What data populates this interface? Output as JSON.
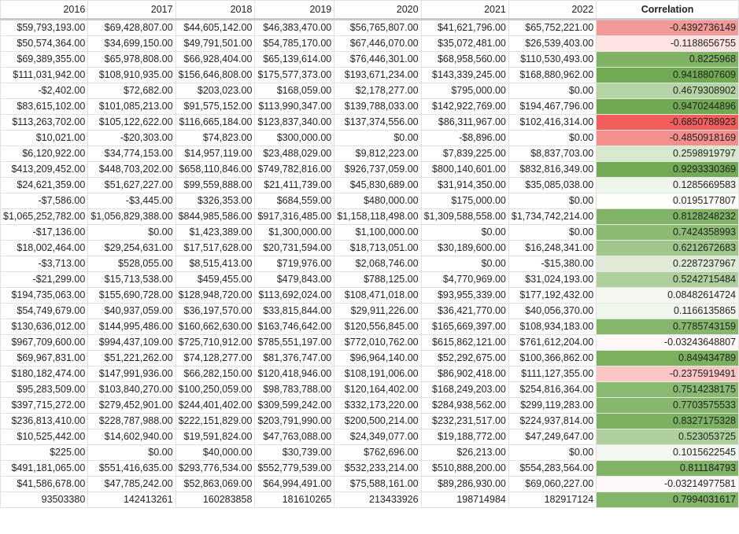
{
  "header": {
    "years": [
      "2016",
      "2017",
      "2018",
      "2019",
      "2020",
      "2021",
      "2022"
    ],
    "corr_label": "Correlation"
  },
  "rows": [
    {
      "vals": [
        "$59,793,193.00",
        "$69,428,807.00",
        "$44,605,142.00",
        "$46,383,470.00",
        "$56,765,807.00",
        "$41,621,796.00",
        "$65,752,221.00"
      ],
      "corr": "-0.4392736149",
      "bg": "#f39a98"
    },
    {
      "vals": [
        "$50,574,364.00",
        "$34,699,150.00",
        "$49,791,501.00",
        "$54,785,170.00",
        "$67,446,070.00",
        "$35,072,481.00",
        "$26,539,403.00"
      ],
      "corr": "-0.1188656755",
      "bg": "#fde3e2"
    },
    {
      "vals": [
        "$69,389,355.00",
        "$65,978,808.00",
        "$66,928,404.00",
        "$65,139,614.00",
        "$76,446,301.00",
        "$68,958,560.00",
        "$110,530,493.00"
      ],
      "corr": "0.8225968",
      "bg": "#7fb263"
    },
    {
      "vals": [
        "$111,031,942.00",
        "$108,910,935.00",
        "$156,646,808.00",
        "$175,577,373.00",
        "$193,671,234.00",
        "$143,339,245.00",
        "$168,880,962.00"
      ],
      "corr": "0.9418807609",
      "bg": "#71aa53"
    },
    {
      "vals": [
        "-$2,402.00",
        "$72,682.00",
        "$203,023.00",
        "$168,059.00",
        "$2,178,277.00",
        "$795,000.00",
        "$0.00"
      ],
      "corr": "0.4679308902",
      "bg": "#b6d4a5"
    },
    {
      "vals": [
        "$83,615,102.00",
        "$101,085,213.00",
        "$91,575,152.00",
        "$113,990,347.00",
        "$139,788,033.00",
        "$142,922,769.00",
        "$194,467,796.00"
      ],
      "corr": "0.9470244896",
      "bg": "#70a952"
    },
    {
      "vals": [
        "$113,263,702.00",
        "$105,122,622.00",
        "$116,665,184.00",
        "$123,837,340.00",
        "$137,374,556.00",
        "$86,311,967.00",
        "$102,416,314.00"
      ],
      "corr": "-0.6850788923",
      "bg": "#f25e5c"
    },
    {
      "vals": [
        "$10,021.00",
        "-$20,303.00",
        "$74,823.00",
        "$300,000.00",
        "$0.00",
        "-$8,896.00",
        "$0.00"
      ],
      "corr": "-0.4850918169",
      "bg": "#f3908d"
    },
    {
      "vals": [
        "$6,120,922.00",
        "$34,774,153.00",
        "$14,957,119.00",
        "$23,488,029.00",
        "$9,812,223.00",
        "$7,839,225.00",
        "$8,837,703.00"
      ],
      "corr": "0.2598919797",
      "bg": "#d9e9d0"
    },
    {
      "vals": [
        "$413,209,452.00",
        "$448,703,202.00",
        "$658,110,846.00",
        "$749,782,816.00",
        "$926,737,059.00",
        "$800,140,601.00",
        "$832,816,349.00"
      ],
      "corr": "0.9293330369",
      "bg": "#72ab55"
    },
    {
      "vals": [
        "$24,621,359.00",
        "$51,627,227.00",
        "$99,559,888.00",
        "$21,411,739.00",
        "$45,830,689.00",
        "$31,914,350.00",
        "$35,085,038.00"
      ],
      "corr": "0.1285669583",
      "bg": "#eef5ea"
    },
    {
      "vals": [
        "-$7,586.00",
        "-$3,445.00",
        "$326,353.00",
        "$684,559.00",
        "$480,000.00",
        "$175,000.00",
        "$0.00"
      ],
      "corr": "0.0195177807",
      "bg": "#fdfefc"
    },
    {
      "vals": [
        "$1,065,252,782.00",
        "$1,056,829,388.00",
        "$844,985,586.00",
        "$917,316,485.00",
        "$1,158,118,498.00",
        "$1,309,588,558.00",
        "$1,734,742,214.00"
      ],
      "corr": "0.8128248232",
      "bg": "#80b365"
    },
    {
      "vals": [
        "-$17,136.00",
        "$0.00",
        "$1,423,389.00",
        "$1,300,000.00",
        "$1,100,000.00",
        "$0.00",
        "$0.00"
      ],
      "corr": "0.7424358993",
      "bg": "#8cba73"
    },
    {
      "vals": [
        "$18,002,464.00",
        "$29,254,631.00",
        "$17,517,628.00",
        "$20,731,594.00",
        "$18,713,051.00",
        "$30,189,600.00",
        "$16,248,341.00"
      ],
      "corr": "0.6212672683",
      "bg": "#a0c68b"
    },
    {
      "vals": [
        "-$3,713.00",
        "$528,055.00",
        "$8,515,413.00",
        "$719,976.00",
        "$2,068,746.00",
        "$0.00",
        "-$15,380.00"
      ],
      "corr": "0.2287237967",
      "bg": "#deebd6"
    },
    {
      "vals": [
        "-$21,299.00",
        "$15,713,538.00",
        "$459,455.00",
        "$479,843.00",
        "$788,125.00",
        "$4,770,969.00",
        "$31,024,193.00"
      ],
      "corr": "0.5242715484",
      "bg": "#afd09d"
    },
    {
      "vals": [
        "$194,735,063.00",
        "$155,690,728.00",
        "$128,948,720.00",
        "$113,692,024.00",
        "$108,471,018.00",
        "$93,955,339.00",
        "$177,192,432.00"
      ],
      "corr": "0.08482614724",
      "bg": "#f4f8f1"
    },
    {
      "vals": [
        "$54,749,679.00",
        "$40,937,059.00",
        "$36,197,570.00",
        "$33,815,844.00",
        "$29,911,226.00",
        "$36,421,770.00",
        "$40,056,370.00"
      ],
      "corr": "0.1166135865",
      "bg": "#f0f6ec"
    },
    {
      "vals": [
        "$130,636,012.00",
        "$144,995,486.00",
        "$160,662,630.00",
        "$163,746,642.00",
        "$120,556,845.00",
        "$165,669,397.00",
        "$108,934,183.00"
      ],
      "corr": "0.7785743159",
      "bg": "#86b66c"
    },
    {
      "vals": [
        "$967,709,600.00",
        "$994,437,109.00",
        "$725,710,912.00",
        "$785,551,197.00",
        "$772,010,762.00",
        "$615,862,121.00",
        "$761,612,204.00"
      ],
      "corr": "-0.03243648807",
      "bg": "#fef8f8"
    },
    {
      "vals": [
        "$69,967,831.00",
        "$51,221,262.00",
        "$74,128,277.00",
        "$81,376,747.00",
        "$96,964,140.00",
        "$52,292,675.00",
        "$100,366,862.00"
      ],
      "corr": "0.849434789",
      "bg": "#7bb05f"
    },
    {
      "vals": [
        "$180,182,474.00",
        "$147,991,936.00",
        "$66,282,150.00",
        "$120,418,946.00",
        "$108,191,006.00",
        "$86,902,418.00",
        "$111,127,355.00"
      ],
      "corr": "-0.2375919491",
      "bg": "#f9c6c5"
    },
    {
      "vals": [
        "$95,283,509.00",
        "$103,840,270.00",
        "$100,250,059.00",
        "$98,783,788.00",
        "$120,164,402.00",
        "$168,249,203.00",
        "$254,816,364.00"
      ],
      "corr": "0.7514238175",
      "bg": "#8ab971"
    },
    {
      "vals": [
        "$397,715,272.00",
        "$279,452,901.00",
        "$244,401,402.00",
        "$309,599,242.00",
        "$332,173,220.00",
        "$284,938,562.00",
        "$299,119,283.00"
      ],
      "corr": "0.7703575533",
      "bg": "#87b76d"
    },
    {
      "vals": [
        "$236,813,410.00",
        "$228,787,988.00",
        "$222,151,829.00",
        "$203,791,990.00",
        "$200,500,214.00",
        "$232,231,517.00",
        "$224,937,814.00"
      ],
      "corr": "0.8327175328",
      "bg": "#7db162"
    },
    {
      "vals": [
        "$10,525,442.00",
        "$14,602,940.00",
        "$19,591,824.00",
        "$47,763,088.00",
        "$24,349,077.00",
        "$19,188,772.00",
        "$47,249,647.00"
      ],
      "corr": "0.523053725",
      "bg": "#afd09d"
    },
    {
      "vals": [
        "$225.00",
        "$0.00",
        "$40,000.00",
        "$30,739.00",
        "$762,696.00",
        "$26,213.00",
        "$0.00"
      ],
      "corr": "0.1015622545",
      "bg": "#f2f7ef"
    },
    {
      "vals": [
        "$491,181,065.00",
        "$551,416,635.00",
        "$293,776,534.00",
        "$552,779,539.00",
        "$532,233,214.00",
        "$510,888,200.00",
        "$554,283,564.00"
      ],
      "corr": "0.811184793",
      "bg": "#80b365"
    },
    {
      "vals": [
        "$41,586,678.00",
        "$47,785,242.00",
        "$52,863,069.00",
        "$64,994,491.00",
        "$75,588,161.00",
        "$89,286,930.00",
        "$69,060,227.00"
      ],
      "corr": "-0.03214977581",
      "bg": "#fef8f8"
    },
    {
      "vals": [
        "93503380",
        "142413261",
        "160283858",
        "181610265",
        "213433926",
        "198714984",
        "182917124"
      ],
      "corr": "0.7994031617",
      "bg": "#83b569"
    }
  ]
}
